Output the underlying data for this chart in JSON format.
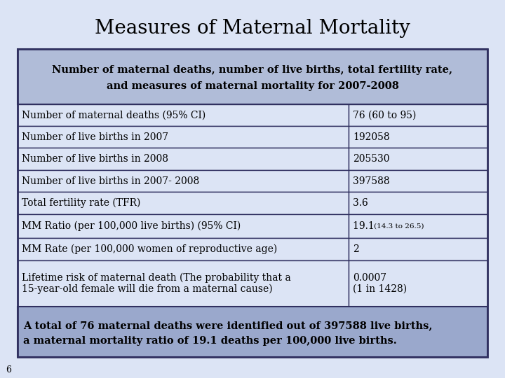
{
  "title": "Measures of Maternal Mortality",
  "slide_bg": "#dce4f5",
  "header_bg": "#b0bcd8",
  "footer_bg": "#9aa8cc",
  "row_bg": "#dce4f5",
  "border_color": "#303060",
  "header_text_line1": "Number of maternal deaths, number of live births, total fertility rate,",
  "header_text_line2": "and measures of maternal mortality for 2007-2008",
  "footer_text_line1": "A total of 76 maternal deaths were identified out of 397588 live births,",
  "footer_text_line2": "a maternal mortality ratio of 19.1 deaths per 100,000 live births.",
  "page_number": "6",
  "rows": [
    [
      "Number of maternal deaths (95% CI)",
      "76 (60 to 95)",
      false
    ],
    [
      "Number of live births in 2007",
      "192058",
      false
    ],
    [
      "Number of live births in 2008",
      "205530",
      false
    ],
    [
      "Number of live births in 2007- 2008",
      "397588",
      false
    ],
    [
      "Total fertility rate (TFR)",
      "3.6",
      false
    ],
    [
      "MM Ratio (per 100,000 live births) (95% CI)",
      "19.1_mixed",
      false
    ],
    [
      "MM Rate (per 100,000 women of reproductive age)",
      "2",
      false
    ],
    [
      "Lifetime risk of maternal death (The probability that a\n15-year-old female will die from a maternal cause)",
      "0.0007\n(1 in 1428)",
      true
    ]
  ],
  "col_split": 0.705,
  "title_fontsize": 20,
  "header_fontsize": 10.5,
  "data_fontsize": 10,
  "footer_fontsize": 10.5
}
